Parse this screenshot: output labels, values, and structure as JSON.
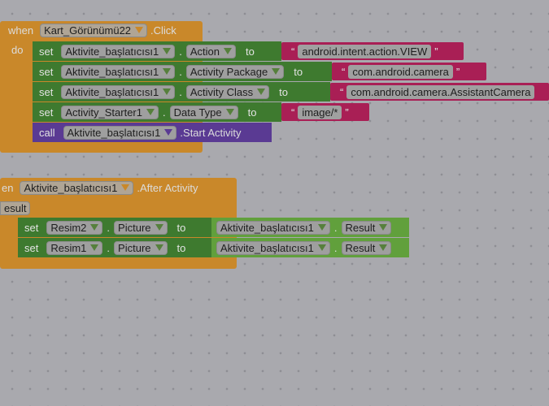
{
  "event1": {
    "when": "when",
    "component": "Kart_Görünümü22",
    "event": ".Click",
    "do": "do"
  },
  "stmts1": [
    {
      "kw": "set",
      "component": "Aktivite_başlatıcısı1",
      "prop": "Action",
      "to": "to",
      "value": "android.intent.action.VIEW"
    },
    {
      "kw": "set",
      "component": "Aktivite_başlatıcısı1",
      "prop": "Activity Package",
      "to": "to",
      "value": "com.android.camera"
    },
    {
      "kw": "set",
      "component": "Aktivite_başlatıcısı1",
      "prop": "Activity Class",
      "to": "to",
      "value": "com.android.camera.AssistantCamera"
    },
    {
      "kw": "set",
      "component": "Activity_Starter1",
      "prop": "Data Type",
      "to": "to",
      "value": "image/*"
    }
  ],
  "call1": {
    "kw": "call",
    "component": "Aktivite_başlatıcısı1",
    "method": ".Start Activity"
  },
  "event2": {
    "when": "en",
    "component": "Aktivite_başlatıcısı1",
    "event": ".After Activity",
    "param": "esult"
  },
  "stmts2": [
    {
      "kw": "set",
      "component": "Resim2",
      "prop": "Picture",
      "to": "to",
      "src_component": "Aktivite_başlatıcısı1",
      "src_prop": "Result"
    },
    {
      "kw": "set",
      "component": "Resim1",
      "prop": "Picture",
      "to": "to",
      "src_component": "Aktivite_başlatıcısı1",
      "src_prop": "Result"
    }
  ],
  "colors": {
    "event": "#c9882a",
    "setter": "#3e7a2f",
    "getter": "#61a03c",
    "call": "#5a3a93",
    "string": "#a91f55",
    "workspace": "#a9a9ae"
  }
}
